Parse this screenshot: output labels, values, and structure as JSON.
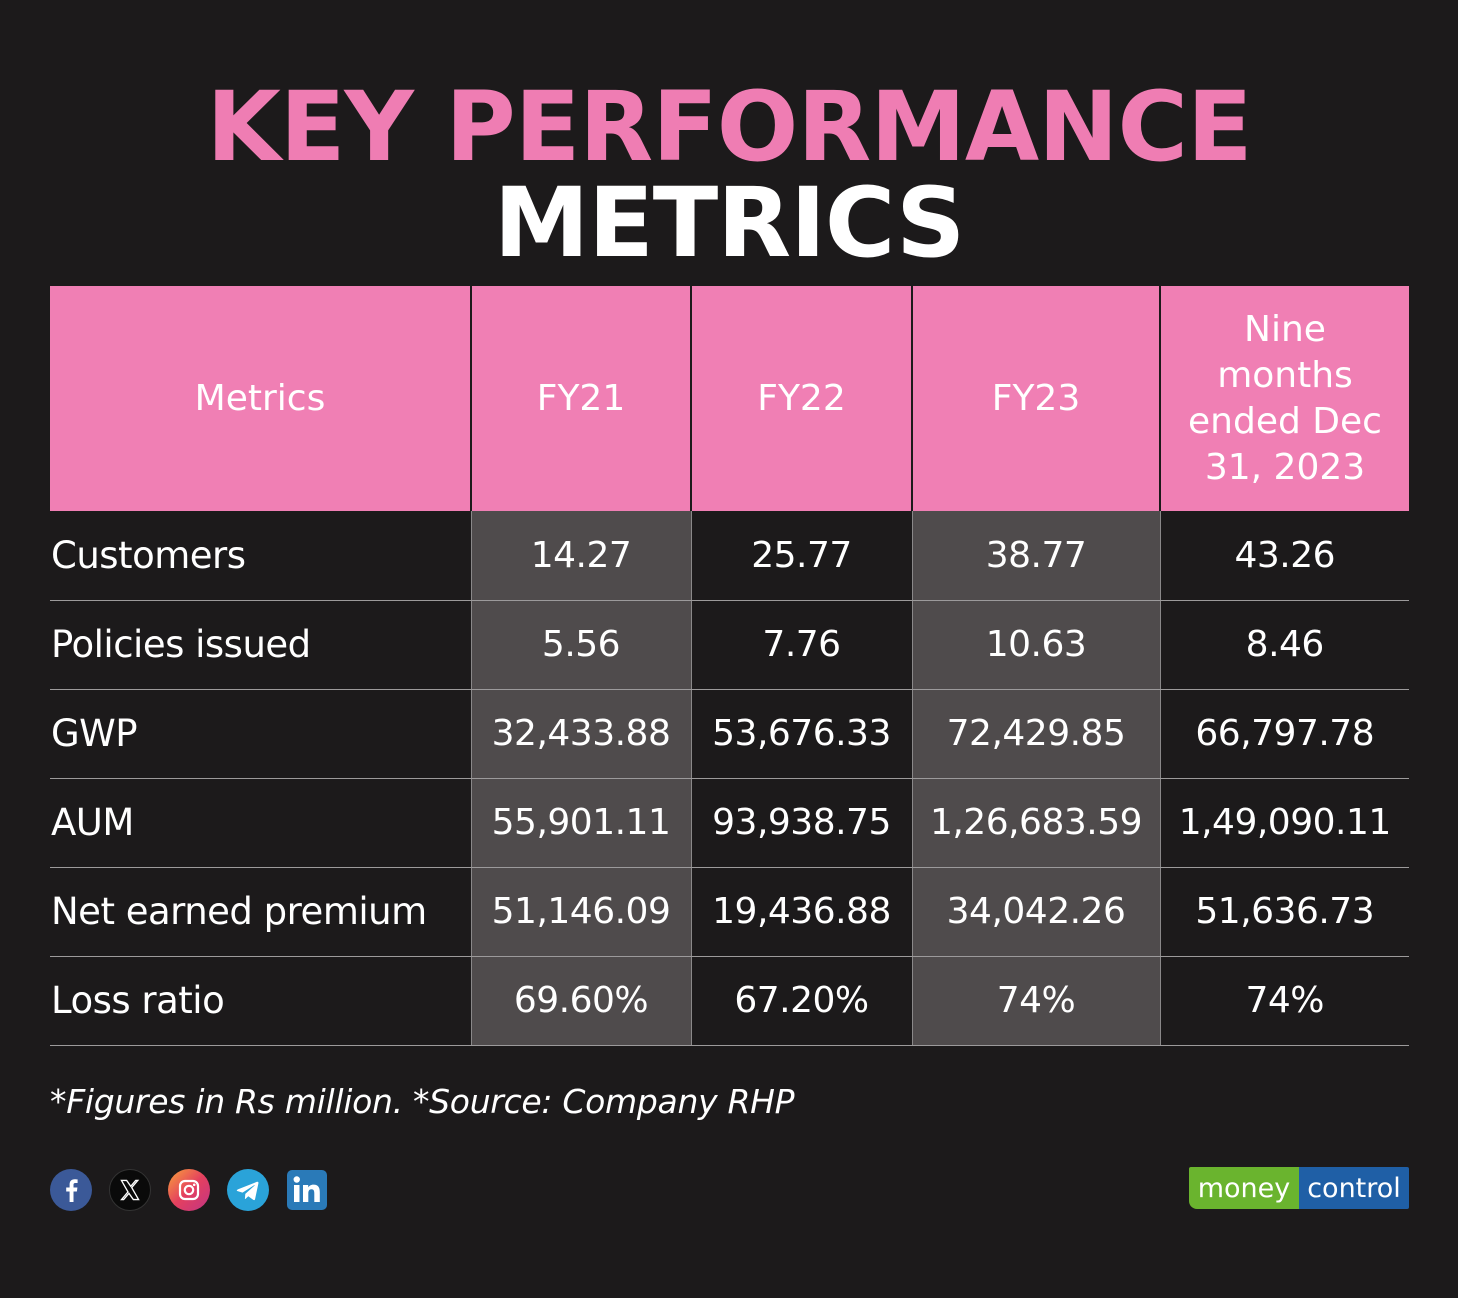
{
  "title": {
    "line1": "KEY PERFORMANCE",
    "line2": "METRICS"
  },
  "table": {
    "headers": [
      "Metrics",
      "FY21",
      "FY22",
      "FY23",
      "Nine months ended Dec 31, 2023"
    ],
    "rows": [
      {
        "label": "Customers",
        "values": [
          "14.27",
          "25.77",
          "38.77",
          "43.26"
        ]
      },
      {
        "label": "Policies issued",
        "values": [
          "5.56",
          "7.76",
          "10.63",
          "8.46"
        ]
      },
      {
        "label": "GWP",
        "values": [
          "32,433.88",
          "53,676.33",
          "72,429.85",
          "66,797.78"
        ]
      },
      {
        "label": "AUM",
        "values": [
          "55,901.11",
          "93,938.75",
          "1,26,683.59",
          "1,49,090.11"
        ]
      },
      {
        "label": "Net earned premium",
        "values": [
          "51,146.09",
          "19,436.88",
          "34,042.26",
          "51,636.73"
        ]
      },
      {
        "label": "Loss ratio",
        "values": [
          "69.60%",
          "67.20%",
          "74%",
          "74%"
        ]
      }
    ]
  },
  "footnote": "*Figures in Rs million. *Source: Company RHP",
  "social": {
    "icons": [
      "facebook-icon",
      "x-icon",
      "instagram-icon",
      "telegram-icon",
      "linkedin-icon"
    ]
  },
  "logo": {
    "part1": "money",
    "part2": "control"
  },
  "colors": {
    "background": "#1c1a1b",
    "accent_pink": "#ef7db3",
    "header_pink": "#f07fb4",
    "shade_cell": "#4f4b4c",
    "logo_green": "#6ab42e",
    "logo_blue": "#1f5fa6"
  }
}
